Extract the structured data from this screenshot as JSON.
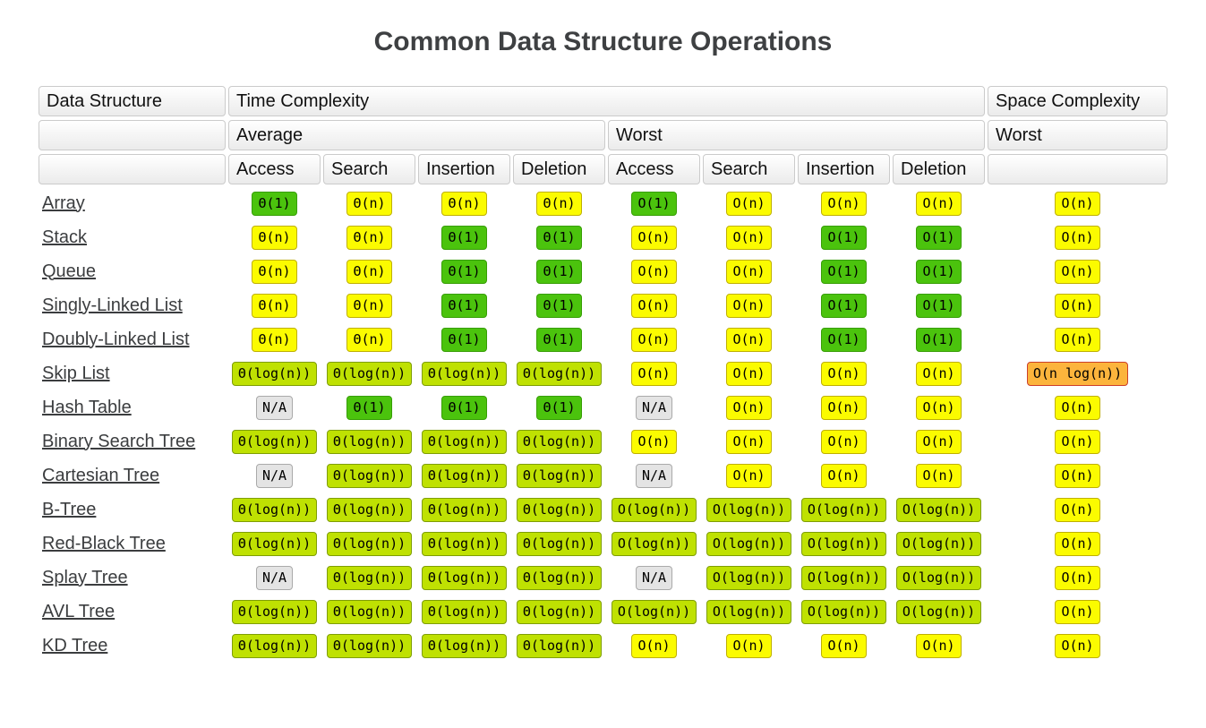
{
  "page": {
    "title": "Common Data Structure Operations",
    "background": "#ffffff"
  },
  "palette": {
    "green": {
      "bg": "#4bc30d",
      "border": "#379e05"
    },
    "yellow": {
      "bg": "#fbfb00",
      "border": "#bfb000"
    },
    "yellowgreen": {
      "bg": "#bfe102",
      "border": "#7f9e04"
    },
    "orange": {
      "bg": "#fcb43c",
      "border": "#cc3f2a"
    },
    "gray": {
      "bg": "#e4e4e4",
      "border": "#aaaaaa"
    }
  },
  "table": {
    "header": {
      "col1": "Data Structure",
      "time": "Time Complexity",
      "space": "Space Complexity",
      "average": "Average",
      "worst": "Worst",
      "space_worst": "Worst",
      "ops": [
        "Access",
        "Search",
        "Insertion",
        "Deletion",
        "Access",
        "Search",
        "Insertion",
        "Deletion"
      ]
    },
    "cell_keys": [
      "avg-access",
      "avg-search",
      "avg-insertion",
      "avg-deletion",
      "worst-access",
      "worst-search",
      "worst-insertion",
      "worst-deletion",
      "space-worst"
    ],
    "rows": [
      {
        "name": "Array",
        "cells": [
          {
            "text": "Θ(1)",
            "level": "green"
          },
          {
            "text": "Θ(n)",
            "level": "yellow"
          },
          {
            "text": "Θ(n)",
            "level": "yellow"
          },
          {
            "text": "Θ(n)",
            "level": "yellow"
          },
          {
            "text": "O(1)",
            "level": "green"
          },
          {
            "text": "O(n)",
            "level": "yellow"
          },
          {
            "text": "O(n)",
            "level": "yellow"
          },
          {
            "text": "O(n)",
            "level": "yellow"
          },
          {
            "text": "O(n)",
            "level": "yellow"
          }
        ]
      },
      {
        "name": "Stack",
        "cells": [
          {
            "text": "Θ(n)",
            "level": "yellow"
          },
          {
            "text": "Θ(n)",
            "level": "yellow"
          },
          {
            "text": "Θ(1)",
            "level": "green"
          },
          {
            "text": "Θ(1)",
            "level": "green"
          },
          {
            "text": "O(n)",
            "level": "yellow"
          },
          {
            "text": "O(n)",
            "level": "yellow"
          },
          {
            "text": "O(1)",
            "level": "green"
          },
          {
            "text": "O(1)",
            "level": "green"
          },
          {
            "text": "O(n)",
            "level": "yellow"
          }
        ]
      },
      {
        "name": "Queue",
        "cells": [
          {
            "text": "Θ(n)",
            "level": "yellow"
          },
          {
            "text": "Θ(n)",
            "level": "yellow"
          },
          {
            "text": "Θ(1)",
            "level": "green"
          },
          {
            "text": "Θ(1)",
            "level": "green"
          },
          {
            "text": "O(n)",
            "level": "yellow"
          },
          {
            "text": "O(n)",
            "level": "yellow"
          },
          {
            "text": "O(1)",
            "level": "green"
          },
          {
            "text": "O(1)",
            "level": "green"
          },
          {
            "text": "O(n)",
            "level": "yellow"
          }
        ]
      },
      {
        "name": "Singly-Linked List",
        "cells": [
          {
            "text": "Θ(n)",
            "level": "yellow"
          },
          {
            "text": "Θ(n)",
            "level": "yellow"
          },
          {
            "text": "Θ(1)",
            "level": "green"
          },
          {
            "text": "Θ(1)",
            "level": "green"
          },
          {
            "text": "O(n)",
            "level": "yellow"
          },
          {
            "text": "O(n)",
            "level": "yellow"
          },
          {
            "text": "O(1)",
            "level": "green"
          },
          {
            "text": "O(1)",
            "level": "green"
          },
          {
            "text": "O(n)",
            "level": "yellow"
          }
        ]
      },
      {
        "name": "Doubly-Linked List",
        "cells": [
          {
            "text": "Θ(n)",
            "level": "yellow"
          },
          {
            "text": "Θ(n)",
            "level": "yellow"
          },
          {
            "text": "Θ(1)",
            "level": "green"
          },
          {
            "text": "Θ(1)",
            "level": "green"
          },
          {
            "text": "O(n)",
            "level": "yellow"
          },
          {
            "text": "O(n)",
            "level": "yellow"
          },
          {
            "text": "O(1)",
            "level": "green"
          },
          {
            "text": "O(1)",
            "level": "green"
          },
          {
            "text": "O(n)",
            "level": "yellow"
          }
        ]
      },
      {
        "name": "Skip List",
        "cells": [
          {
            "text": "Θ(log(n))",
            "level": "yellowgreen"
          },
          {
            "text": "Θ(log(n))",
            "level": "yellowgreen"
          },
          {
            "text": "Θ(log(n))",
            "level": "yellowgreen"
          },
          {
            "text": "Θ(log(n))",
            "level": "yellowgreen"
          },
          {
            "text": "O(n)",
            "level": "yellow"
          },
          {
            "text": "O(n)",
            "level": "yellow"
          },
          {
            "text": "O(n)",
            "level": "yellow"
          },
          {
            "text": "O(n)",
            "level": "yellow"
          },
          {
            "text": "O(n log(n))",
            "level": "orange"
          }
        ]
      },
      {
        "name": "Hash Table",
        "cells": [
          {
            "text": "N/A",
            "level": "gray"
          },
          {
            "text": "Θ(1)",
            "level": "green"
          },
          {
            "text": "Θ(1)",
            "level": "green"
          },
          {
            "text": "Θ(1)",
            "level": "green"
          },
          {
            "text": "N/A",
            "level": "gray"
          },
          {
            "text": "O(n)",
            "level": "yellow"
          },
          {
            "text": "O(n)",
            "level": "yellow"
          },
          {
            "text": "O(n)",
            "level": "yellow"
          },
          {
            "text": "O(n)",
            "level": "yellow"
          }
        ]
      },
      {
        "name": "Binary Search Tree",
        "cells": [
          {
            "text": "Θ(log(n))",
            "level": "yellowgreen"
          },
          {
            "text": "Θ(log(n))",
            "level": "yellowgreen"
          },
          {
            "text": "Θ(log(n))",
            "level": "yellowgreen"
          },
          {
            "text": "Θ(log(n))",
            "level": "yellowgreen"
          },
          {
            "text": "O(n)",
            "level": "yellow"
          },
          {
            "text": "O(n)",
            "level": "yellow"
          },
          {
            "text": "O(n)",
            "level": "yellow"
          },
          {
            "text": "O(n)",
            "level": "yellow"
          },
          {
            "text": "O(n)",
            "level": "yellow"
          }
        ]
      },
      {
        "name": "Cartesian Tree",
        "cells": [
          {
            "text": "N/A",
            "level": "gray"
          },
          {
            "text": "Θ(log(n))",
            "level": "yellowgreen"
          },
          {
            "text": "Θ(log(n))",
            "level": "yellowgreen"
          },
          {
            "text": "Θ(log(n))",
            "level": "yellowgreen"
          },
          {
            "text": "N/A",
            "level": "gray"
          },
          {
            "text": "O(n)",
            "level": "yellow"
          },
          {
            "text": "O(n)",
            "level": "yellow"
          },
          {
            "text": "O(n)",
            "level": "yellow"
          },
          {
            "text": "O(n)",
            "level": "yellow"
          }
        ]
      },
      {
        "name": "B-Tree",
        "cells": [
          {
            "text": "Θ(log(n))",
            "level": "yellowgreen"
          },
          {
            "text": "Θ(log(n))",
            "level": "yellowgreen"
          },
          {
            "text": "Θ(log(n))",
            "level": "yellowgreen"
          },
          {
            "text": "Θ(log(n))",
            "level": "yellowgreen"
          },
          {
            "text": "O(log(n))",
            "level": "yellowgreen"
          },
          {
            "text": "O(log(n))",
            "level": "yellowgreen"
          },
          {
            "text": "O(log(n))",
            "level": "yellowgreen"
          },
          {
            "text": "O(log(n))",
            "level": "yellowgreen"
          },
          {
            "text": "O(n)",
            "level": "yellow"
          }
        ]
      },
      {
        "name": "Red-Black Tree",
        "cells": [
          {
            "text": "Θ(log(n))",
            "level": "yellowgreen"
          },
          {
            "text": "Θ(log(n))",
            "level": "yellowgreen"
          },
          {
            "text": "Θ(log(n))",
            "level": "yellowgreen"
          },
          {
            "text": "Θ(log(n))",
            "level": "yellowgreen"
          },
          {
            "text": "O(log(n))",
            "level": "yellowgreen"
          },
          {
            "text": "O(log(n))",
            "level": "yellowgreen"
          },
          {
            "text": "O(log(n))",
            "level": "yellowgreen"
          },
          {
            "text": "O(log(n))",
            "level": "yellowgreen"
          },
          {
            "text": "O(n)",
            "level": "yellow"
          }
        ]
      },
      {
        "name": "Splay Tree",
        "cells": [
          {
            "text": "N/A",
            "level": "gray"
          },
          {
            "text": "Θ(log(n))",
            "level": "yellowgreen"
          },
          {
            "text": "Θ(log(n))",
            "level": "yellowgreen"
          },
          {
            "text": "Θ(log(n))",
            "level": "yellowgreen"
          },
          {
            "text": "N/A",
            "level": "gray"
          },
          {
            "text": "O(log(n))",
            "level": "yellowgreen"
          },
          {
            "text": "O(log(n))",
            "level": "yellowgreen"
          },
          {
            "text": "O(log(n))",
            "level": "yellowgreen"
          },
          {
            "text": "O(n)",
            "level": "yellow"
          }
        ]
      },
      {
        "name": "AVL Tree",
        "cells": [
          {
            "text": "Θ(log(n))",
            "level": "yellowgreen"
          },
          {
            "text": "Θ(log(n))",
            "level": "yellowgreen"
          },
          {
            "text": "Θ(log(n))",
            "level": "yellowgreen"
          },
          {
            "text": "Θ(log(n))",
            "level": "yellowgreen"
          },
          {
            "text": "O(log(n))",
            "level": "yellowgreen"
          },
          {
            "text": "O(log(n))",
            "level": "yellowgreen"
          },
          {
            "text": "O(log(n))",
            "level": "yellowgreen"
          },
          {
            "text": "O(log(n))",
            "level": "yellowgreen"
          },
          {
            "text": "O(n)",
            "level": "yellow"
          }
        ]
      },
      {
        "name": "KD Tree",
        "cells": [
          {
            "text": "Θ(log(n))",
            "level": "yellowgreen"
          },
          {
            "text": "Θ(log(n))",
            "level": "yellowgreen"
          },
          {
            "text": "Θ(log(n))",
            "level": "yellowgreen"
          },
          {
            "text": "Θ(log(n))",
            "level": "yellowgreen"
          },
          {
            "text": "O(n)",
            "level": "yellow"
          },
          {
            "text": "O(n)",
            "level": "yellow"
          },
          {
            "text": "O(n)",
            "level": "yellow"
          },
          {
            "text": "O(n)",
            "level": "yellow"
          },
          {
            "text": "O(n)",
            "level": "yellow"
          }
        ]
      }
    ]
  }
}
